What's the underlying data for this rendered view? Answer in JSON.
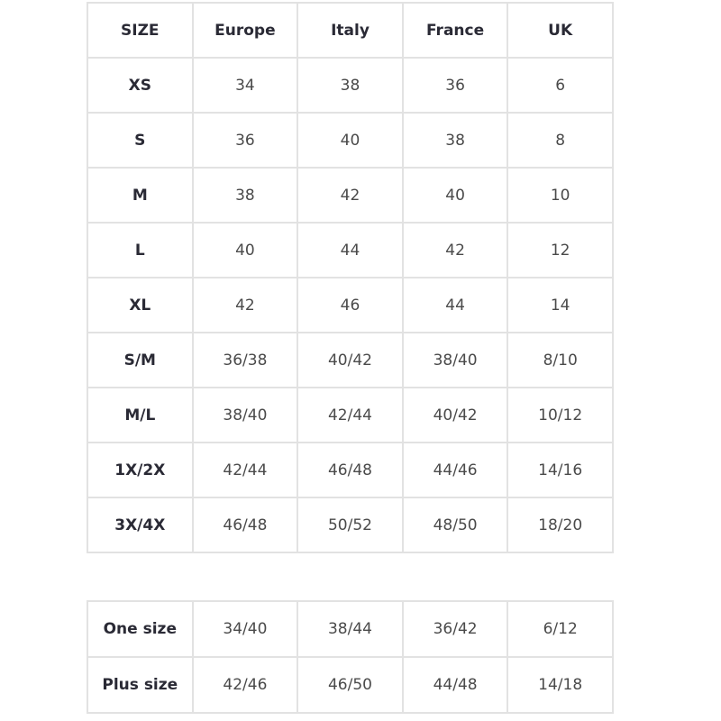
{
  "size_table": {
    "headers": [
      "SIZE",
      "Europe",
      "Italy",
      "France",
      "UK"
    ],
    "rows": [
      [
        "XS",
        "34",
        "38",
        "36",
        "6"
      ],
      [
        "S",
        "36",
        "40",
        "38",
        "8"
      ],
      [
        "M",
        "38",
        "42",
        "40",
        "10"
      ],
      [
        "L",
        "40",
        "44",
        "42",
        "12"
      ],
      [
        "XL",
        "42",
        "46",
        "44",
        "14"
      ],
      [
        "S/M",
        "36/38",
        "40/42",
        "38/40",
        "8/10"
      ],
      [
        "M/L",
        "38/40",
        "42/44",
        "40/42",
        "10/12"
      ],
      [
        "1X/2X",
        "42/44",
        "46/48",
        "44/46",
        "14/16"
      ],
      [
        "3X/4X",
        "46/48",
        "50/52",
        "48/50",
        "18/20"
      ]
    ]
  },
  "special_sizes_table": {
    "rows": [
      [
        "One size",
        "34/40",
        "38/44",
        "36/42",
        "6/12"
      ],
      [
        "Plus size",
        "42/46",
        "46/50",
        "44/48",
        "14/18"
      ]
    ]
  }
}
